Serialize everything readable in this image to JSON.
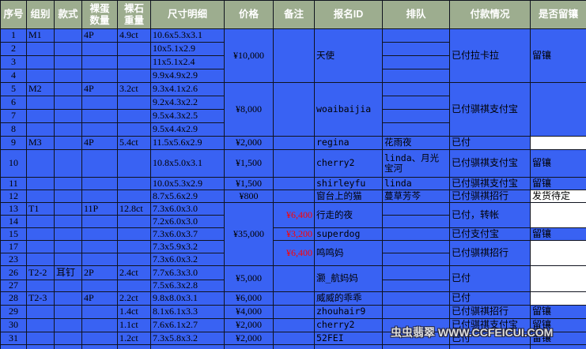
{
  "colors": {
    "header_bg": "#9dad8f",
    "cell_bg": "#3962f3",
    "grid": "#10131f",
    "remark_red": "#ff0000",
    "white_cell": "#ffffff"
  },
  "watermark": "虫虫翡翠 WWW.CCFEICUI.COM",
  "table": {
    "headers": [
      {
        "key": "serial",
        "label": "序号"
      },
      {
        "key": "group",
        "label": "组别"
      },
      {
        "key": "style",
        "label": "款式"
      },
      {
        "key": "egg-count",
        "label": "裸蛋\n数量"
      },
      {
        "key": "stone-weight",
        "label": "裸石\n重量"
      },
      {
        "key": "size",
        "label": "尺寸明细"
      },
      {
        "key": "price",
        "label": "价格"
      },
      {
        "key": "remark",
        "label": "备注"
      },
      {
        "key": "signup-id",
        "label": "报名ID"
      },
      {
        "key": "queue",
        "label": "排队"
      },
      {
        "key": "payment",
        "label": "付款情况"
      },
      {
        "key": "keep-setting",
        "label": "是否留镶"
      }
    ],
    "rows": [
      {
        "h": 17,
        "cells": [
          [
            0,
            "1"
          ],
          [
            1,
            "M1"
          ],
          [
            2,
            ""
          ],
          [
            3,
            "4P"
          ],
          [
            4,
            "4.9ct"
          ],
          [
            5,
            "10.6x5.3x3.1"
          ],
          [
            6,
            "¥10,000",
            4
          ],
          [
            7,
            "",
            4
          ],
          [
            8,
            "天使",
            4
          ],
          [
            9,
            ""
          ],
          [
            10,
            "已付拉卡拉",
            4
          ],
          [
            11,
            "留镶",
            4
          ]
        ]
      },
      {
        "h": 17,
        "cells": [
          [
            0,
            "2"
          ],
          [
            1,
            ""
          ],
          [
            2,
            ""
          ],
          [
            3,
            ""
          ],
          [
            4,
            ""
          ],
          [
            5,
            "10x5.1x2.9"
          ],
          [
            9,
            ""
          ]
        ]
      },
      {
        "h": 17,
        "cells": [
          [
            0,
            "3"
          ],
          [
            1,
            ""
          ],
          [
            2,
            ""
          ],
          [
            3,
            ""
          ],
          [
            4,
            ""
          ],
          [
            5,
            "11x5.1x2.4"
          ],
          [
            9,
            ""
          ]
        ]
      },
      {
        "h": 17,
        "cells": [
          [
            0,
            "4"
          ],
          [
            1,
            ""
          ],
          [
            2,
            ""
          ],
          [
            3,
            ""
          ],
          [
            4,
            ""
          ],
          [
            5,
            "9.9x4.9x2.9"
          ],
          [
            9,
            ""
          ]
        ]
      },
      {
        "h": 17,
        "cells": [
          [
            0,
            "5"
          ],
          [
            1,
            "M2"
          ],
          [
            2,
            ""
          ],
          [
            3,
            "4P"
          ],
          [
            4,
            "3.2ct"
          ],
          [
            5,
            "9.3x4.1x2.6"
          ],
          [
            6,
            "¥8,000",
            4
          ],
          [
            7,
            "",
            4
          ],
          [
            8,
            "woaibaijia",
            4
          ],
          [
            9,
            ""
          ],
          [
            10,
            "已付骐祺支付宝",
            4
          ],
          [
            11,
            "",
            4
          ]
        ]
      },
      {
        "h": 17,
        "cells": [
          [
            0,
            "6"
          ],
          [
            1,
            ""
          ],
          [
            2,
            ""
          ],
          [
            3,
            ""
          ],
          [
            4,
            ""
          ],
          [
            5,
            "9.2x4.3x2.2"
          ],
          [
            9,
            ""
          ]
        ]
      },
      {
        "h": 17,
        "cells": [
          [
            0,
            "7"
          ],
          [
            1,
            ""
          ],
          [
            2,
            ""
          ],
          [
            3,
            ""
          ],
          [
            4,
            ""
          ],
          [
            5,
            "9.5x4.3x2.5"
          ],
          [
            9,
            ""
          ]
        ]
      },
      {
        "h": 17,
        "cells": [
          [
            0,
            "8"
          ],
          [
            1,
            ""
          ],
          [
            2,
            ""
          ],
          [
            3,
            ""
          ],
          [
            4,
            ""
          ],
          [
            5,
            "9.5x4.4x2.9"
          ],
          [
            9,
            ""
          ]
        ]
      },
      {
        "h": 17,
        "cells": [
          [
            0,
            "9"
          ],
          [
            1,
            "M3"
          ],
          [
            2,
            ""
          ],
          [
            3,
            "4P"
          ],
          [
            4,
            "5.4ct"
          ],
          [
            5,
            "11.5x5.6x2.9"
          ],
          [
            6,
            "¥2,000"
          ],
          [
            7,
            ""
          ],
          [
            8,
            "regina"
          ],
          [
            9,
            "花雨夜"
          ],
          [
            10,
            "已付"
          ],
          [
            11,
            "",
            1,
            "white"
          ]
        ]
      },
      {
        "h": 35,
        "cells": [
          [
            0,
            "10"
          ],
          [
            1,
            ""
          ],
          [
            2,
            ""
          ],
          [
            3,
            ""
          ],
          [
            4,
            ""
          ],
          [
            5,
            "10.8x5.0x3.1"
          ],
          [
            6,
            "¥1,500"
          ],
          [
            7,
            ""
          ],
          [
            8,
            "cherry2"
          ],
          [
            9,
            "linda、月光宝河"
          ],
          [
            10,
            "已付骐祺支付宝"
          ],
          [
            11,
            "留镶"
          ]
        ]
      },
      {
        "h": 16,
        "cells": [
          [
            0,
            "11"
          ],
          [
            1,
            ""
          ],
          [
            2,
            ""
          ],
          [
            3,
            ""
          ],
          [
            4,
            ""
          ],
          [
            5,
            "10.0x5.3x2.9"
          ],
          [
            6,
            "¥1,500"
          ],
          [
            7,
            ""
          ],
          [
            8,
            "shirleyfu"
          ],
          [
            9,
            "linda"
          ],
          [
            10,
            "已付骐祺支付宝"
          ],
          [
            11,
            "留镶"
          ]
        ]
      },
      {
        "h": 16,
        "cells": [
          [
            0,
            "12"
          ],
          [
            1,
            ""
          ],
          [
            2,
            ""
          ],
          [
            3,
            ""
          ],
          [
            4,
            ""
          ],
          [
            5,
            "8.7x5.6x2.9"
          ],
          [
            6,
            "¥800"
          ],
          [
            7,
            ""
          ],
          [
            8,
            "窗台上的猫"
          ],
          [
            9,
            "蔓草芳芩"
          ],
          [
            10,
            "已付骐祺招行"
          ],
          [
            11,
            "发货待定",
            1,
            "white"
          ]
        ]
      },
      {
        "h": 16,
        "cells": [
          [
            0,
            "13"
          ],
          [
            1,
            "T1"
          ],
          [
            2,
            ""
          ],
          [
            3,
            "11P"
          ],
          [
            4,
            "12.8ct"
          ],
          [
            5,
            "7.3x6.0x3.0"
          ],
          [
            6,
            "¥35,000",
            5
          ],
          [
            7,
            "¥6,400",
            2,
            "red"
          ],
          [
            8,
            "行走的夜",
            2
          ],
          [
            9,
            ""
          ],
          [
            10,
            "已付，转帐",
            2
          ],
          [
            11,
            "",
            2,
            "white"
          ]
        ]
      },
      {
        "h": 16,
        "cells": [
          [
            0,
            "14"
          ],
          [
            1,
            ""
          ],
          [
            2,
            ""
          ],
          [
            3,
            ""
          ],
          [
            4,
            ""
          ],
          [
            5,
            "7.2x6.0x3.0"
          ],
          [
            9,
            ""
          ]
        ]
      },
      {
        "h": 16,
        "cells": [
          [
            0,
            "15"
          ],
          [
            1,
            ""
          ],
          [
            2,
            ""
          ],
          [
            3,
            ""
          ],
          [
            4,
            ""
          ],
          [
            5,
            "7.3x6.0x3.7"
          ],
          [
            7,
            "¥3,200",
            1,
            "red"
          ],
          [
            8,
            "superdog"
          ],
          [
            9,
            ""
          ],
          [
            10,
            "已付支付宝"
          ],
          [
            11,
            "留镶"
          ]
        ]
      },
      {
        "h": 16,
        "cells": [
          [
            0,
            "17"
          ],
          [
            1,
            ""
          ],
          [
            2,
            ""
          ],
          [
            3,
            ""
          ],
          [
            4,
            ""
          ],
          [
            5,
            "7.3x5.9x3.2"
          ],
          [
            7,
            "¥6,400",
            2,
            "red"
          ],
          [
            8,
            "鸣鸣妈",
            2
          ],
          [
            9,
            ""
          ],
          [
            10,
            "已付骐祺招行",
            2
          ],
          [
            11,
            "",
            2,
            "white"
          ]
        ]
      },
      {
        "h": 16,
        "cells": [
          [
            0,
            "23"
          ],
          [
            1,
            ""
          ],
          [
            2,
            ""
          ],
          [
            3,
            ""
          ],
          [
            4,
            ""
          ],
          [
            5,
            "7.3x6.0x3.2"
          ],
          [
            9,
            ""
          ]
        ]
      },
      {
        "h": 18,
        "cells": [
          [
            0,
            "26"
          ],
          [
            1,
            "T2-2"
          ],
          [
            2,
            "耳钉"
          ],
          [
            3,
            "2P"
          ],
          [
            4,
            "2.4ct"
          ],
          [
            5,
            "7.7x6.3x3.0"
          ],
          [
            6,
            "¥5,000",
            2
          ],
          [
            7,
            "",
            2
          ],
          [
            8,
            "灏_航妈妈",
            2
          ],
          [
            9,
            ""
          ],
          [
            10,
            "已付",
            2
          ],
          [
            11,
            "",
            2,
            "white"
          ]
        ]
      },
      {
        "h": 15,
        "cells": [
          [
            0,
            "27"
          ],
          [
            1,
            ""
          ],
          [
            2,
            ""
          ],
          [
            3,
            ""
          ],
          [
            4,
            ""
          ],
          [
            5,
            "7.5x6.3x2.8"
          ],
          [
            9,
            ""
          ]
        ]
      },
      {
        "h": 17,
        "cells": [
          [
            0,
            "28"
          ],
          [
            1,
            "T2-3"
          ],
          [
            2,
            ""
          ],
          [
            3,
            "4P"
          ],
          [
            4,
            "2.2ct"
          ],
          [
            5,
            "9.8x8.0x3.1"
          ],
          [
            6,
            "¥6,000"
          ],
          [
            7,
            ""
          ],
          [
            8,
            "威威的乖乖"
          ],
          [
            9,
            ""
          ],
          [
            10,
            "已付"
          ],
          [
            11,
            "",
            1,
            "white"
          ]
        ]
      },
      {
        "h": 17,
        "cells": [
          [
            0,
            "29"
          ],
          [
            1,
            ""
          ],
          [
            2,
            ""
          ],
          [
            3,
            ""
          ],
          [
            4,
            "1.4ct"
          ],
          [
            5,
            "8.1x6.1x3.3"
          ],
          [
            6,
            "¥4,000"
          ],
          [
            7,
            ""
          ],
          [
            8,
            "zhouhair9"
          ],
          [
            9,
            ""
          ],
          [
            10,
            "已付骐祺招行"
          ],
          [
            11,
            "留镶"
          ]
        ]
      },
      {
        "h": 17,
        "cells": [
          [
            0,
            "30"
          ],
          [
            1,
            ""
          ],
          [
            2,
            ""
          ],
          [
            3,
            ""
          ],
          [
            4,
            "1.1ct"
          ],
          [
            5,
            "7.6x6.1x2.7"
          ],
          [
            6,
            "¥2,000"
          ],
          [
            7,
            ""
          ],
          [
            8,
            "cherry2"
          ],
          [
            9,
            ""
          ],
          [
            10,
            "已付骐祺支付宝"
          ],
          [
            11,
            "留镶"
          ]
        ]
      },
      {
        "h": 16,
        "cells": [
          [
            0,
            "31"
          ],
          [
            1,
            ""
          ],
          [
            2,
            ""
          ],
          [
            3,
            ""
          ],
          [
            4,
            "1.2ct"
          ],
          [
            5,
            "7.3x5.8x3.2"
          ],
          [
            6,
            "¥2,000"
          ],
          [
            7,
            ""
          ],
          [
            8,
            "52FEI"
          ],
          [
            9,
            ""
          ],
          [
            10,
            "已付"
          ],
          [
            11,
            "留镶"
          ]
        ]
      },
      {
        "h": 12,
        "cells": [
          [
            0,
            ""
          ],
          [
            1,
            ""
          ],
          [
            2,
            ""
          ],
          [
            3,
            ""
          ],
          [
            4,
            ""
          ],
          [
            5,
            ""
          ],
          [
            6,
            ""
          ],
          [
            7,
            ""
          ],
          [
            8,
            ""
          ],
          [
            9,
            ""
          ],
          [
            10,
            ""
          ],
          [
            11,
            ""
          ]
        ]
      }
    ]
  }
}
